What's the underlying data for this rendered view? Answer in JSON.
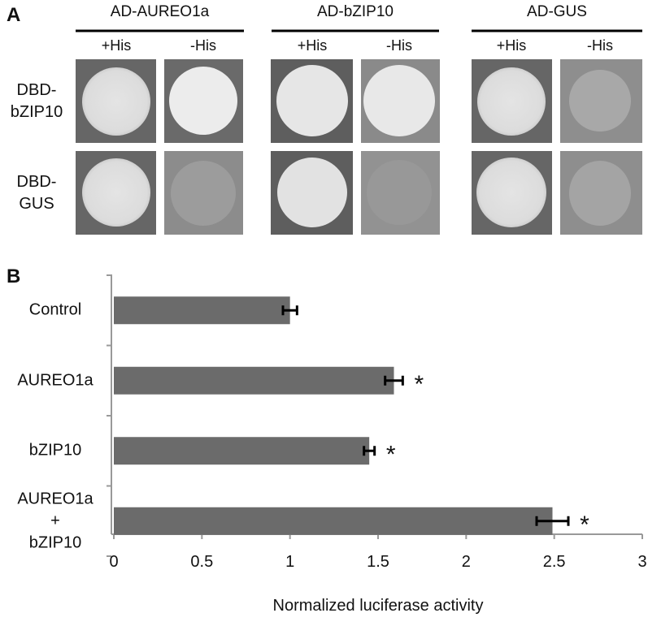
{
  "panel_a": {
    "label": "A",
    "columns": [
      {
        "title": "AD-AUREO1a",
        "conditions": [
          "+His",
          "-His"
        ]
      },
      {
        "title": "AD-bZIP10",
        "conditions": [
          "+His",
          "-His"
        ]
      },
      {
        "title": "AD-GUS",
        "conditions": [
          "+His",
          "-His"
        ]
      }
    ],
    "rows": [
      "DBD-\nbZIP10",
      "DBD-\nGUS"
    ]
  },
  "chart_data": {
    "type": "hbar",
    "panel_label": "B",
    "categories": [
      "Control",
      "AUREO1a",
      "bZIP10",
      "AUREO1a\n+\nbZIP10"
    ],
    "values": [
      1.0,
      1.59,
      1.45,
      2.49
    ],
    "errors": [
      0.04,
      0.05,
      0.03,
      0.09
    ],
    "significance": [
      null,
      "*",
      "*",
      "*"
    ],
    "color": "#6b6b6b",
    "xlim": [
      0,
      3
    ],
    "xticks": [
      0,
      0.5,
      1,
      1.5,
      2,
      2.5,
      3
    ],
    "xlabel": "Normalized luciferase activity"
  }
}
